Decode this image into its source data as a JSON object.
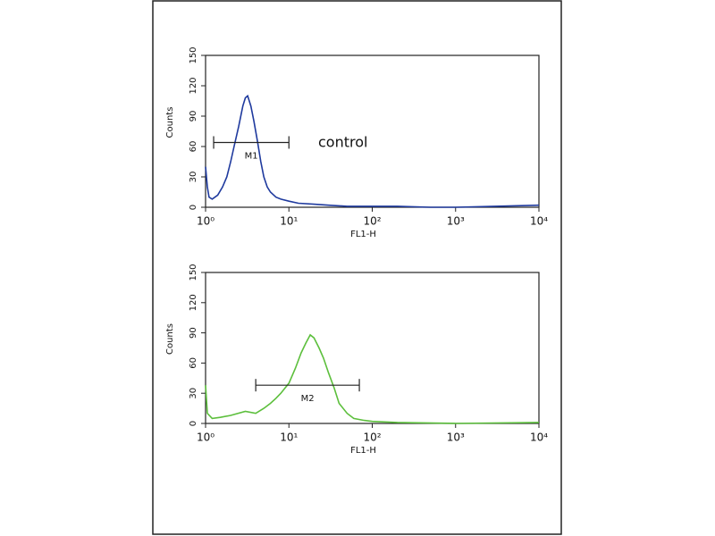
{
  "chart_data": [
    {
      "type": "line",
      "xlabel": "FL1-H",
      "ylabel": "Counts",
      "xscale": "log",
      "xlim": [
        1,
        10000
      ],
      "ylim": [
        0,
        150
      ],
      "xticks": [
        {
          "value": 1,
          "label": "10⁰"
        },
        {
          "value": 10,
          "label": "10¹"
        },
        {
          "value": 100,
          "label": "10²"
        },
        {
          "value": 1000,
          "label": "10³"
        },
        {
          "value": 10000,
          "label": "10⁴"
        }
      ],
      "yticks": [
        0,
        30,
        60,
        90,
        120,
        150
      ],
      "series": [
        {
          "color": "#1f3a9e",
          "x": [
            1,
            1.05,
            1.1,
            1.2,
            1.4,
            1.6,
            1.8,
            2,
            2.2,
            2.5,
            2.8,
            3,
            3.2,
            3.5,
            3.8,
            4.2,
            4.6,
            5,
            5.5,
            6,
            7,
            8,
            10,
            13,
            20,
            30,
            50,
            100,
            200,
            500,
            1000,
            3000,
            10000
          ],
          "values": [
            40,
            20,
            10,
            8,
            12,
            20,
            30,
            45,
            60,
            80,
            100,
            108,
            110,
            100,
            85,
            65,
            45,
            30,
            20,
            15,
            10,
            8,
            6,
            4,
            3,
            2,
            1,
            1,
            1,
            0,
            0,
            1,
            2
          ]
        }
      ],
      "markers": [
        {
          "label": "M1",
          "x": [
            1.25,
            10
          ],
          "y": 64
        }
      ],
      "annotations": [
        "control"
      ]
    },
    {
      "type": "line",
      "xlabel": "FL1-H",
      "ylabel": "Counts",
      "xscale": "log",
      "xlim": [
        1,
        10000
      ],
      "ylim": [
        0,
        150
      ],
      "xticks": [
        {
          "value": 1,
          "label": "10⁰"
        },
        {
          "value": 10,
          "label": "10¹"
        },
        {
          "value": 100,
          "label": "10²"
        },
        {
          "value": 1000,
          "label": "10³"
        },
        {
          "value": 10000,
          "label": "10⁴"
        }
      ],
      "yticks": [
        0,
        30,
        60,
        90,
        120,
        150
      ],
      "series": [
        {
          "color": "#5cbf3c",
          "x": [
            1,
            1.05,
            1.2,
            1.5,
            2,
            3,
            4,
            5,
            6,
            7,
            8,
            10,
            12,
            14,
            16,
            18,
            20,
            23,
            26,
            30,
            35,
            40,
            50,
            60,
            80,
            100,
            200,
            1000,
            10000
          ],
          "values": [
            38,
            10,
            5,
            6,
            8,
            12,
            10,
            15,
            20,
            25,
            30,
            40,
            55,
            70,
            80,
            88,
            85,
            75,
            65,
            50,
            35,
            20,
            10,
            5,
            3,
            2,
            1,
            0,
            1
          ]
        }
      ],
      "markers": [
        {
          "label": "M2",
          "x": [
            4,
            70
          ],
          "y": 38
        }
      ],
      "annotations": []
    }
  ]
}
